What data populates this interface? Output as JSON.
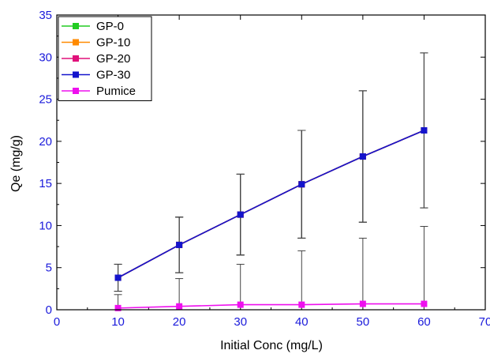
{
  "chart_data": {
    "type": "line",
    "xlabel": "Initial Conc (mg/L)",
    "ylabel": "Qe (mg/g)",
    "xlim": [
      0,
      70
    ],
    "ylim": [
      0,
      35
    ],
    "xticks": [
      0,
      10,
      20,
      30,
      40,
      50,
      60,
      70
    ],
    "yticks": [
      0,
      5,
      10,
      15,
      20,
      25,
      30,
      35
    ],
    "tick_color": "#1a1adb",
    "legend_position": "top-left",
    "grid": false,
    "series": [
      {
        "name": "GP-0",
        "color": "#22cc22",
        "x": [
          10,
          20,
          30,
          40,
          50,
          60
        ],
        "values": [
          3.8,
          7.7,
          11.3,
          14.9,
          18.2,
          21.3
        ],
        "error": [
          1.6,
          3.3,
          4.8,
          6.4,
          7.8,
          9.2
        ]
      },
      {
        "name": "GP-10",
        "color": "#ff8a00",
        "x": [
          10,
          20,
          30,
          40,
          50,
          60
        ],
        "values": [
          3.8,
          7.7,
          11.3,
          14.9,
          18.2,
          21.3
        ],
        "error": [
          1.6,
          3.3,
          4.8,
          6.4,
          7.8,
          9.2
        ]
      },
      {
        "name": "GP-20",
        "color": "#e0107a",
        "x": [
          10,
          20,
          30,
          40,
          50,
          60
        ],
        "values": [
          3.8,
          7.7,
          11.3,
          14.9,
          18.2,
          21.3
        ],
        "error": [
          1.6,
          3.3,
          4.8,
          6.4,
          7.8,
          9.2
        ]
      },
      {
        "name": "GP-30",
        "color": "#1414cc",
        "x": [
          10,
          20,
          30,
          40,
          50,
          60
        ],
        "values": [
          3.8,
          7.7,
          11.3,
          14.9,
          18.2,
          21.3
        ],
        "error": [
          1.6,
          3.3,
          4.8,
          6.4,
          7.8,
          9.2
        ]
      },
      {
        "name": "Pumice",
        "color": "#ee10ee",
        "x": [
          10,
          20,
          30,
          40,
          50,
          60
        ],
        "values": [
          0.2,
          0.4,
          0.6,
          0.6,
          0.7,
          0.7
        ],
        "error": [
          1.6,
          3.3,
          4.8,
          6.4,
          7.8,
          9.2
        ]
      }
    ]
  }
}
